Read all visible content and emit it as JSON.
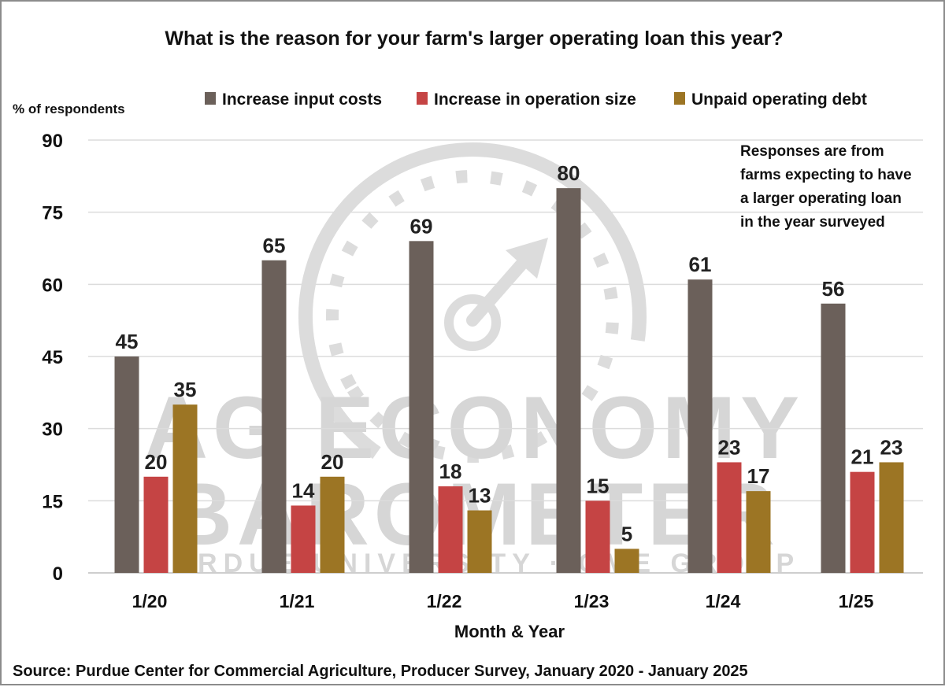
{
  "chart_data": {
    "type": "bar",
    "title": "What is the reason for your farm's larger operating loan this year?",
    "ylabel": "% of respondents",
    "xlabel": "Month & Year",
    "categories": [
      "1/20",
      "1/21",
      "1/22",
      "1/23",
      "1/24",
      "1/25"
    ],
    "series": [
      {
        "name": "Increase input costs",
        "color": "#6b605a",
        "values": [
          45,
          65,
          69,
          80,
          61,
          56
        ]
      },
      {
        "name": "Increase in operation size",
        "color": "#c54444",
        "values": [
          20,
          14,
          18,
          15,
          23,
          21
        ]
      },
      {
        "name": "Unpaid operating debt",
        "color": "#9c7524",
        "values": [
          35,
          20,
          13,
          5,
          17,
          23
        ]
      }
    ],
    "data_labels": [
      [
        "45",
        "65",
        "69",
        "80",
        "61",
        "56"
      ],
      [
        "20",
        "14",
        "18",
        "15",
        "23",
        "21"
      ],
      [
        "35",
        "20",
        "13",
        "5",
        "17",
        "23"
      ]
    ],
    "ylim": [
      0,
      90
    ],
    "yticks": [
      0,
      15,
      30,
      45,
      60,
      75,
      90
    ],
    "grid": true,
    "legend": "top-center",
    "note": [
      "Responses are from",
      "farms expecting to have",
      "a larger operating loan",
      "in the year surveyed"
    ],
    "source": "Source: Purdue Center for Commercial Agriculture, Producer Survey, January 2020 - January 2025",
    "watermark": {
      "line1": "AG ECONOMY",
      "line2": "BAROMETER",
      "line3": "PURDUE UNIVERSITY · CME GROUP"
    }
  }
}
